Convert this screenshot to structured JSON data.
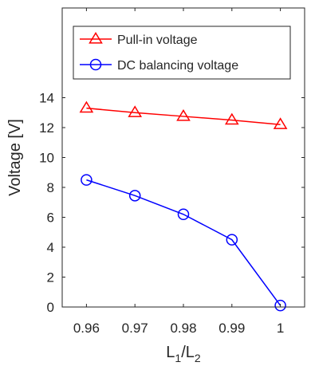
{
  "chart_data": {
    "type": "line",
    "title": "",
    "xlabel": "L1/L2",
    "xlabel_parts": {
      "main": "L",
      "sub1": "1",
      "slash": "/",
      "main2": "L",
      "sub2": "2"
    },
    "ylabel": "Voltage [V]",
    "x": [
      0.96,
      0.97,
      0.98,
      0.99,
      1
    ],
    "xlim": [
      0.955,
      1.005
    ],
    "ylim": [
      0,
      20
    ],
    "xticks": [
      0.96,
      0.97,
      0.98,
      0.99,
      1
    ],
    "xtick_labels": [
      "0.96",
      "0.97",
      "0.98",
      "0.99",
      "1"
    ],
    "yticks": [
      0,
      2,
      4,
      6,
      8,
      10,
      12,
      14
    ],
    "ytick_labels": [
      "0",
      "2",
      "4",
      "6",
      "8",
      "10",
      "12",
      "14"
    ],
    "grid": false,
    "legend_position": "top-right",
    "series": [
      {
        "name": "Pull-in voltage",
        "marker": "triangle",
        "color": "#ff0000",
        "values": [
          13.3,
          13.0,
          12.75,
          12.5,
          12.2
        ]
      },
      {
        "name": "DC balancing voltage",
        "marker": "circle",
        "color": "#0000ff",
        "values": [
          8.5,
          7.45,
          6.2,
          4.5,
          0.1
        ]
      }
    ]
  }
}
